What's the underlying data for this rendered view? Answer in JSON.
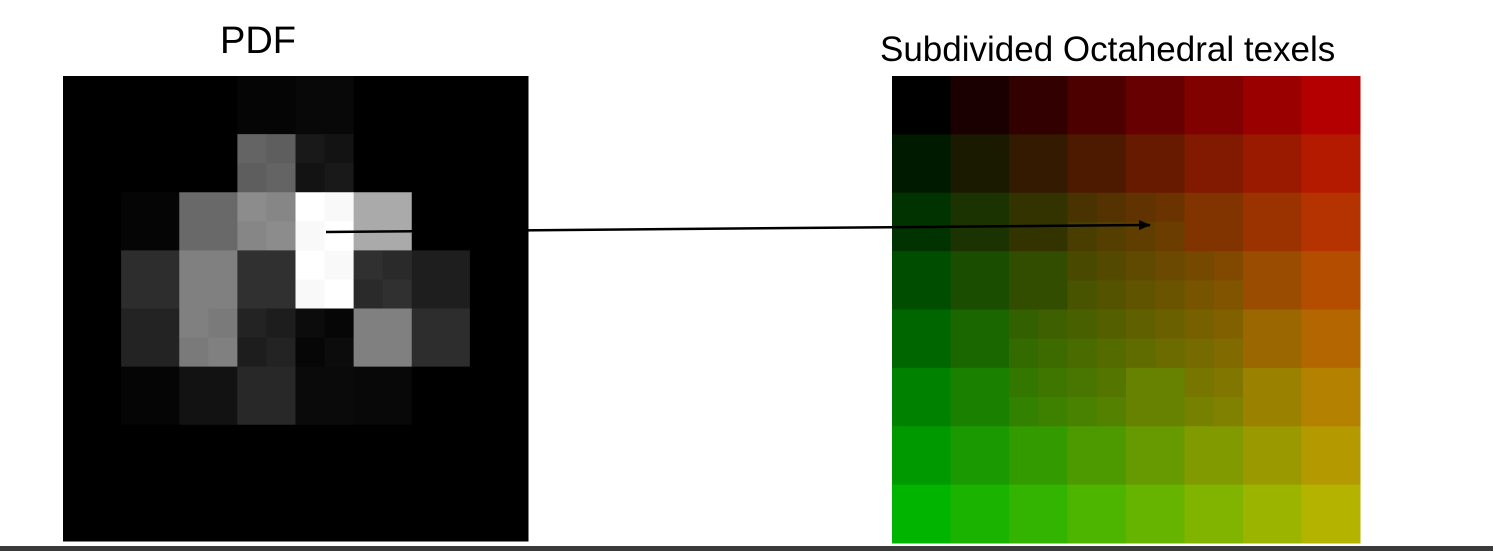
{
  "pdf_panel": {
    "title": "PDF",
    "grid_size": 8,
    "intensity": [
      [
        0,
        0,
        0,
        5,
        8,
        0,
        0,
        0
      ],
      [
        0,
        0,
        0,
        100,
        25,
        0,
        0,
        0
      ],
      [
        0,
        5,
        105,
        140,
        255,
        170,
        0,
        0
      ],
      [
        0,
        45,
        128,
        48,
        255,
        48,
        30,
        0
      ],
      [
        0,
        35,
        128,
        35,
        12,
        128,
        45,
        0
      ],
      [
        0,
        5,
        18,
        40,
        10,
        8,
        0,
        0
      ],
      [
        0,
        0,
        0,
        0,
        0,
        0,
        0,
        0
      ],
      [
        0,
        0,
        0,
        0,
        0,
        0,
        0,
        0
      ]
    ],
    "subdivided_cells": [
      [
        1,
        3
      ],
      [
        1,
        4
      ],
      [
        2,
        3
      ],
      [
        2,
        4
      ],
      [
        3,
        4
      ],
      [
        3,
        5
      ],
      [
        4,
        2
      ],
      [
        4,
        3
      ],
      [
        4,
        4
      ]
    ]
  },
  "texel_panel": {
    "title": "Subdivided Octahedral texels",
    "grid_size": 8,
    "color_scheme": "red increases along x, green increases along y",
    "subdivided_cells": [
      [
        2,
        3
      ],
      [
        2,
        4
      ],
      [
        3,
        3
      ],
      [
        3,
        4
      ],
      [
        3,
        5
      ],
      [
        4,
        2
      ],
      [
        4,
        3
      ],
      [
        4,
        4
      ],
      [
        4,
        5
      ],
      [
        5,
        2
      ],
      [
        5,
        3
      ],
      [
        5,
        5
      ]
    ]
  },
  "arrow": {
    "from_panel": "pdf_panel",
    "to_panel": "texel_panel"
  },
  "colors": {
    "arrow": "#000000",
    "background": "#ffffff"
  }
}
